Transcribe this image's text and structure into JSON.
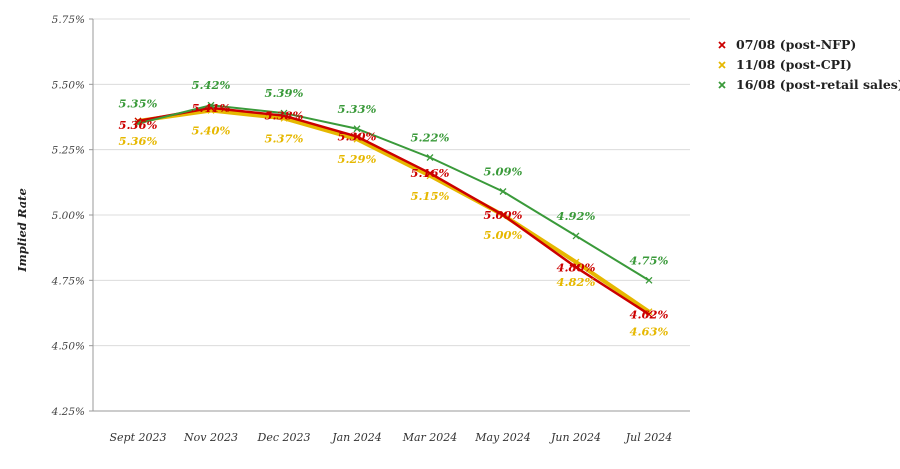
{
  "chart_data": {
    "type": "line",
    "title": "",
    "xlabel": "",
    "ylabel": "Implied Rate",
    "categories": [
      "Sept 2023",
      "Nov 2023",
      "Dec 2023",
      "Jan 2024",
      "Mar 2024",
      "May 2024",
      "Jun 2024",
      "Jul 2024"
    ],
    "y_ticks": [
      "4.25%",
      "4.50%",
      "4.75%",
      "5.00%",
      "5.25%",
      "5.50%",
      "5.75%"
    ],
    "ylim": [
      4.25,
      5.75
    ],
    "grid": "horizontal",
    "legend_position": "top-right",
    "series": [
      {
        "name": "07/08 (post-NFP)",
        "color": "#cc0000",
        "values": [
          5.36,
          5.41,
          5.38,
          5.3,
          5.16,
          5.0,
          4.8,
          4.62
        ],
        "labels": [
          "5.36%",
          "5.41%",
          "5.38%",
          "5.30%",
          "5.16%",
          "5.00%",
          "4.80%",
          "4.62%"
        ]
      },
      {
        "name": "11/08 (post-CPI)",
        "color": "#e6b800",
        "values": [
          5.36,
          5.4,
          5.37,
          5.29,
          5.15,
          5.0,
          4.82,
          4.63
        ],
        "labels": [
          "5.36%",
          "5.40%",
          "5.37%",
          "5.29%",
          "5.15%",
          "5.00%",
          "4.82%",
          "4.63%"
        ]
      },
      {
        "name": "16/08 (post-retail sales)",
        "color": "#3a9a3a",
        "values": [
          5.35,
          5.42,
          5.39,
          5.33,
          5.22,
          5.09,
          4.92,
          4.75
        ],
        "labels": [
          "5.35%",
          "5.42%",
          "5.39%",
          "5.33%",
          "5.22%",
          "5.09%",
          "4.92%",
          "4.75%"
        ]
      }
    ]
  }
}
